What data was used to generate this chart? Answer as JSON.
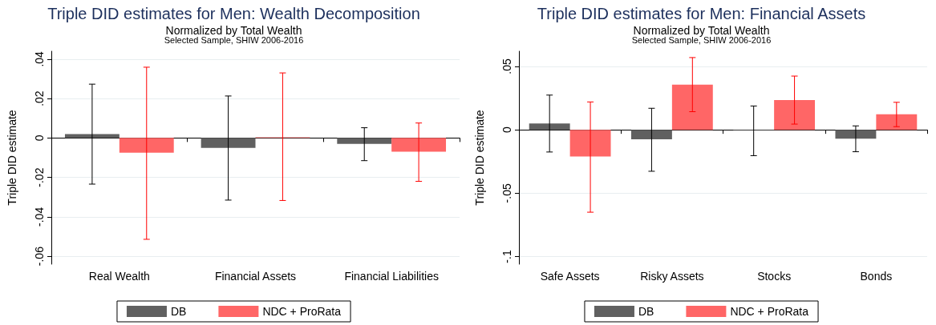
{
  "chart_data": [
    {
      "type": "bar",
      "title": "Triple DID estimates for Men: Wealth Decomposition",
      "subtitle": "Normalized by Total Wealth",
      "annotations": [
        "Selected Sample, SHIW 2006-2016"
      ],
      "ylabel": "Triple DID estimate",
      "categories": [
        "Real Wealth",
        "Financial Assets",
        "Financial Liabilities"
      ],
      "series": [
        {
          "name": "DB",
          "color": "#606060",
          "values": [
            0.002,
            -0.005,
            -0.003
          ],
          "errors": [
            [
              -0.0234,
              0.0273
            ],
            [
              -0.0315,
              0.0213
            ],
            [
              -0.0115,
              0.0052
            ]
          ]
        },
        {
          "name": "NDC + ProRata",
          "color": "#ff6666",
          "values": [
            -0.0075,
            0.0004,
            -0.007
          ],
          "errors": [
            [
              -0.0514,
              0.0359
            ],
            [
              -0.0317,
              0.033
            ],
            [
              -0.022,
              0.0076
            ]
          ]
        }
      ],
      "ylim": [
        -0.064,
        0.044
      ],
      "yticks": [
        {
          "value": -0.06,
          "label": "-.06"
        },
        {
          "value": -0.04,
          "label": "-.04"
        },
        {
          "value": -0.02,
          "label": "-.02"
        },
        0,
        {
          "value": 0.02,
          "label": ".02"
        },
        {
          "value": 0.04,
          "label": ".04"
        }
      ],
      "grid": "y",
      "legend": "bottom"
    },
    {
      "type": "bar",
      "title": "Triple DID estimates for Men: Financial Assets",
      "subtitle": "Normalized by Total Wealth",
      "annotations": [
        "Selected Sample, SHIW 2006-2016"
      ],
      "ylabel": "Triple DID estimate",
      "categories": [
        "Safe Assets",
        "Risky Assets",
        "Stocks",
        "Bonds"
      ],
      "series": [
        {
          "name": "DB",
          "color": "#606060",
          "values": [
            0.005,
            -0.0074,
            -0.0003,
            -0.007
          ],
          "errors": [
            [
              -0.0175,
              0.0274
            ],
            [
              -0.0327,
              0.017
            ],
            [
              -0.0204,
              0.0188
            ],
            [
              -0.0173,
              0.0031
            ]
          ]
        },
        {
          "name": "NDC + ProRata",
          "color": "#ff6666",
          "values": [
            -0.021,
            0.0357,
            0.0235,
            0.0123
          ],
          "errors": [
            [
              -0.065,
              0.022
            ],
            [
              0.0143,
              0.057
            ],
            [
              0.0045,
              0.0424
            ],
            [
              0.0025,
              0.0217
            ]
          ]
        }
      ],
      "ylim": [
        -0.106,
        0.062
      ],
      "yticks": [
        {
          "value": -0.1,
          "label": "-.1"
        },
        {
          "value": -0.05,
          "label": "-.05"
        },
        0,
        {
          "value": 0.05,
          "label": ".05"
        }
      ],
      "grid": "y",
      "legend": "bottom"
    }
  ]
}
